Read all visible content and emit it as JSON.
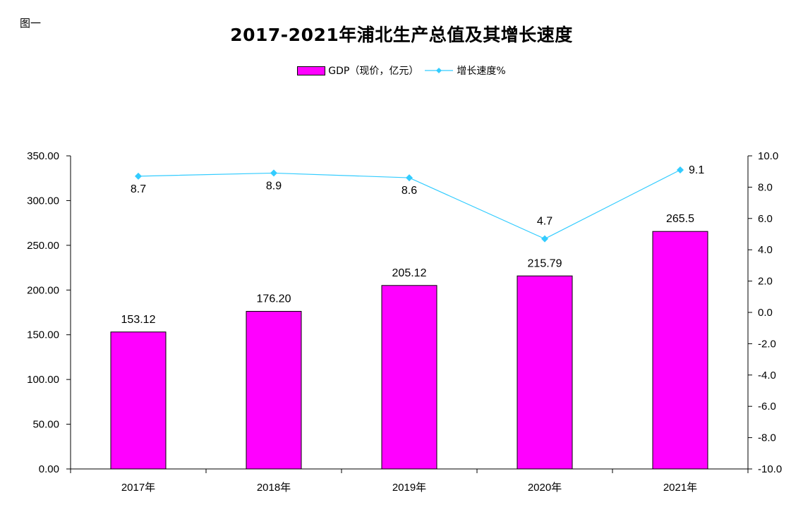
{
  "figure_label": "图一",
  "chart_data": {
    "type": "bar",
    "title": "2017-2021年浦北生产总值及其增长速度",
    "categories": [
      "2017年",
      "2018年",
      "2019年",
      "2020年",
      "2021年"
    ],
    "series": [
      {
        "name": "GDP（现价，亿元）",
        "type": "bar",
        "axis": "left",
        "color": "#FF00FF",
        "values": [
          153.12,
          176.2,
          205.12,
          215.79,
          265.5
        ],
        "labels": [
          "153.12",
          "176.20",
          "205.12",
          "215.79",
          "265.5"
        ]
      },
      {
        "name": "增长速度%",
        "type": "line",
        "axis": "right",
        "color": "#33CCFF",
        "marker": "diamond",
        "values": [
          8.7,
          8.9,
          8.6,
          4.7,
          9.1
        ],
        "labels": [
          "8.7",
          "8.9",
          "8.6",
          "4.7",
          "9.1"
        ]
      }
    ],
    "y_left": {
      "ylim": [
        0,
        350
      ],
      "ticks": [
        0,
        50,
        100,
        150,
        200,
        250,
        300,
        350
      ],
      "tick_labels": [
        "0.00",
        "50.00",
        "100.00",
        "150.00",
        "200.00",
        "250.00",
        "300.00",
        "350.00"
      ]
    },
    "y_right": {
      "ylim": [
        -10,
        10
      ],
      "ticks": [
        -10,
        -8,
        -6,
        -4,
        -2,
        0,
        2,
        4,
        6,
        8,
        10
      ],
      "tick_labels": [
        "-10.0",
        "-8.0",
        "-6.0",
        "-4.0",
        "-2.0",
        "0.0",
        "2.0",
        "4.0",
        "6.0",
        "8.0",
        "10.0"
      ]
    },
    "grid": false,
    "legend_position": "top-center"
  }
}
